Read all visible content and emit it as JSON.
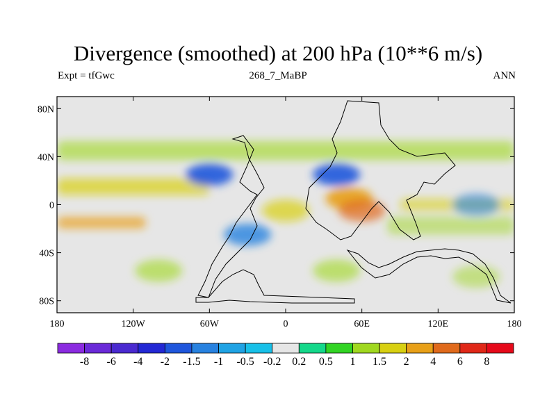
{
  "header": {
    "title": "Divergence (smoothed) at 200 hPa (10**6 m/s)",
    "left_label": "Expt = tfGwc",
    "center_label": "268_7_MaBP",
    "right_label": "ANN"
  },
  "chart_data": {
    "type": "heatmap",
    "title": "Divergence (smoothed) at 200 hPa (10**6 m/s)",
    "subtitle_left": "Expt = tfGwc",
    "subtitle_center": "268_7_MaBP",
    "subtitle_right": "ANN",
    "x_ticks": [
      {
        "value": -180,
        "label": "180"
      },
      {
        "value": -120,
        "label": "120W"
      },
      {
        "value": -60,
        "label": "60W"
      },
      {
        "value": 0,
        "label": "0"
      },
      {
        "value": 60,
        "label": "60E"
      },
      {
        "value": 120,
        "label": "120E"
      },
      {
        "value": 180,
        "label": "180"
      }
    ],
    "y_ticks": [
      {
        "value": 80,
        "label": "80N"
      },
      {
        "value": 40,
        "label": "40N"
      },
      {
        "value": 0,
        "label": "0"
      },
      {
        "value": -40,
        "label": "40S"
      },
      {
        "value": -80,
        "label": "80S"
      }
    ],
    "xlim": [
      -180,
      180
    ],
    "ylim": [
      -90,
      90
    ],
    "colorbar": {
      "levels": [
        "-8",
        "-6",
        "-4",
        "-2",
        "-1.5",
        "-1",
        "-0.5",
        "-0.2",
        "0.2",
        "0.5",
        "1",
        "1.5",
        "2",
        "4",
        "6",
        "8"
      ],
      "colors": [
        "#8b2be0",
        "#6a2ad8",
        "#4a2ad0",
        "#2328d4",
        "#1f56dc",
        "#2882e0",
        "#20a3e4",
        "#18c0e8",
        "#e6e6e6",
        "#14d88a",
        "#32d424",
        "#a0d820",
        "#d8d012",
        "#e8a018",
        "#e06a1c",
        "#e02818",
        "#e6091a"
      ]
    },
    "features": [
      {
        "kind": "band",
        "value": 1,
        "lon": [
          -180,
          180
        ],
        "lat": [
          37,
          53
        ],
        "intensity": 0.6
      },
      {
        "kind": "band",
        "value": 1.5,
        "lon": [
          -180,
          -60
        ],
        "lat": [
          8,
          22
        ],
        "intensity": 0.7
      },
      {
        "kind": "band",
        "value": 2,
        "lon": [
          -180,
          -110
        ],
        "lat": [
          -20,
          -10
        ],
        "intensity": 0.7
      },
      {
        "kind": "band",
        "value": 1,
        "lon": [
          80,
          180
        ],
        "lat": [
          -25,
          -10
        ],
        "intensity": 0.5
      },
      {
        "kind": "band",
        "value": 1.5,
        "lon": [
          90,
          180
        ],
        "lat": [
          -5,
          5
        ],
        "intensity": 0.6
      },
      {
        "kind": "blob",
        "value": 2,
        "lon": 50,
        "lat": 5,
        "intensity": 0.9
      },
      {
        "kind": "blob",
        "value": 4,
        "lon": 60,
        "lat": -5,
        "intensity": 0.7
      },
      {
        "kind": "blob",
        "value": 1.5,
        "lon": 0,
        "lat": -5,
        "intensity": 0.7
      },
      {
        "kind": "blob",
        "value": -2,
        "lon": -60,
        "lat": 25,
        "intensity": 0.9
      },
      {
        "kind": "blob",
        "value": -2,
        "lon": 40,
        "lat": 25,
        "intensity": 0.9
      },
      {
        "kind": "blob",
        "value": -1.5,
        "lon": -30,
        "lat": -25,
        "intensity": 0.8
      },
      {
        "kind": "blob",
        "value": -1.5,
        "lon": 150,
        "lat": 0,
        "intensity": 0.6
      },
      {
        "kind": "blob",
        "value": 1,
        "lon": -100,
        "lat": -55,
        "intensity": 0.6
      },
      {
        "kind": "blob",
        "value": 1,
        "lon": 40,
        "lat": -55,
        "intensity": 0.6
      },
      {
        "kind": "blob",
        "value": 1,
        "lon": 150,
        "lat": -60,
        "intensity": 0.5
      }
    ]
  }
}
